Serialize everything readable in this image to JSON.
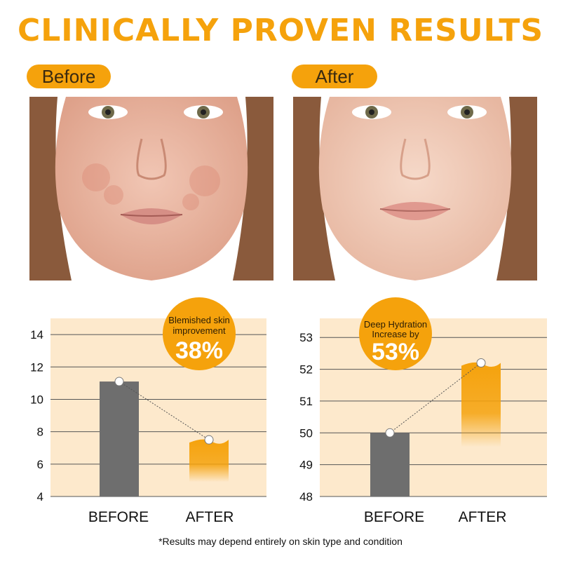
{
  "title": "CLINICALLY PROVEN RESULTS",
  "panels": [
    {
      "label": "Before"
    },
    {
      "label": "After"
    }
  ],
  "colors": {
    "accent": "#f5a20c",
    "chart_bg": "#fde9cc",
    "before_bar": "#6e6e6e",
    "after_bar": "#f5a20c"
  },
  "icons": [
    "face-photo-before",
    "face-photo-after"
  ],
  "badges": [
    {
      "label_line1": "Blemished skin",
      "label_line2": "improvement",
      "value": "38%"
    },
    {
      "label_line1": "Deep Hydration",
      "label_line2": "Increase by",
      "value": "53%"
    }
  ],
  "chart_data": [
    {
      "type": "bar",
      "categories": [
        "BEFORE",
        "AFTER"
      ],
      "values": [
        11.1,
        7.5
      ],
      "yticks": [
        4,
        6,
        8,
        10,
        12,
        14
      ],
      "ylim": [
        4,
        15
      ],
      "grid": true,
      "legend": "none"
    },
    {
      "type": "bar",
      "categories": [
        "BEFORE",
        "AFTER"
      ],
      "values": [
        50.0,
        52.2
      ],
      "yticks": [
        48,
        49,
        50,
        51,
        52,
        53
      ],
      "ylim": [
        48,
        53.6
      ],
      "grid": true,
      "legend": "none"
    }
  ],
  "footnote": "*Results may depend entirely on skin type and condition"
}
